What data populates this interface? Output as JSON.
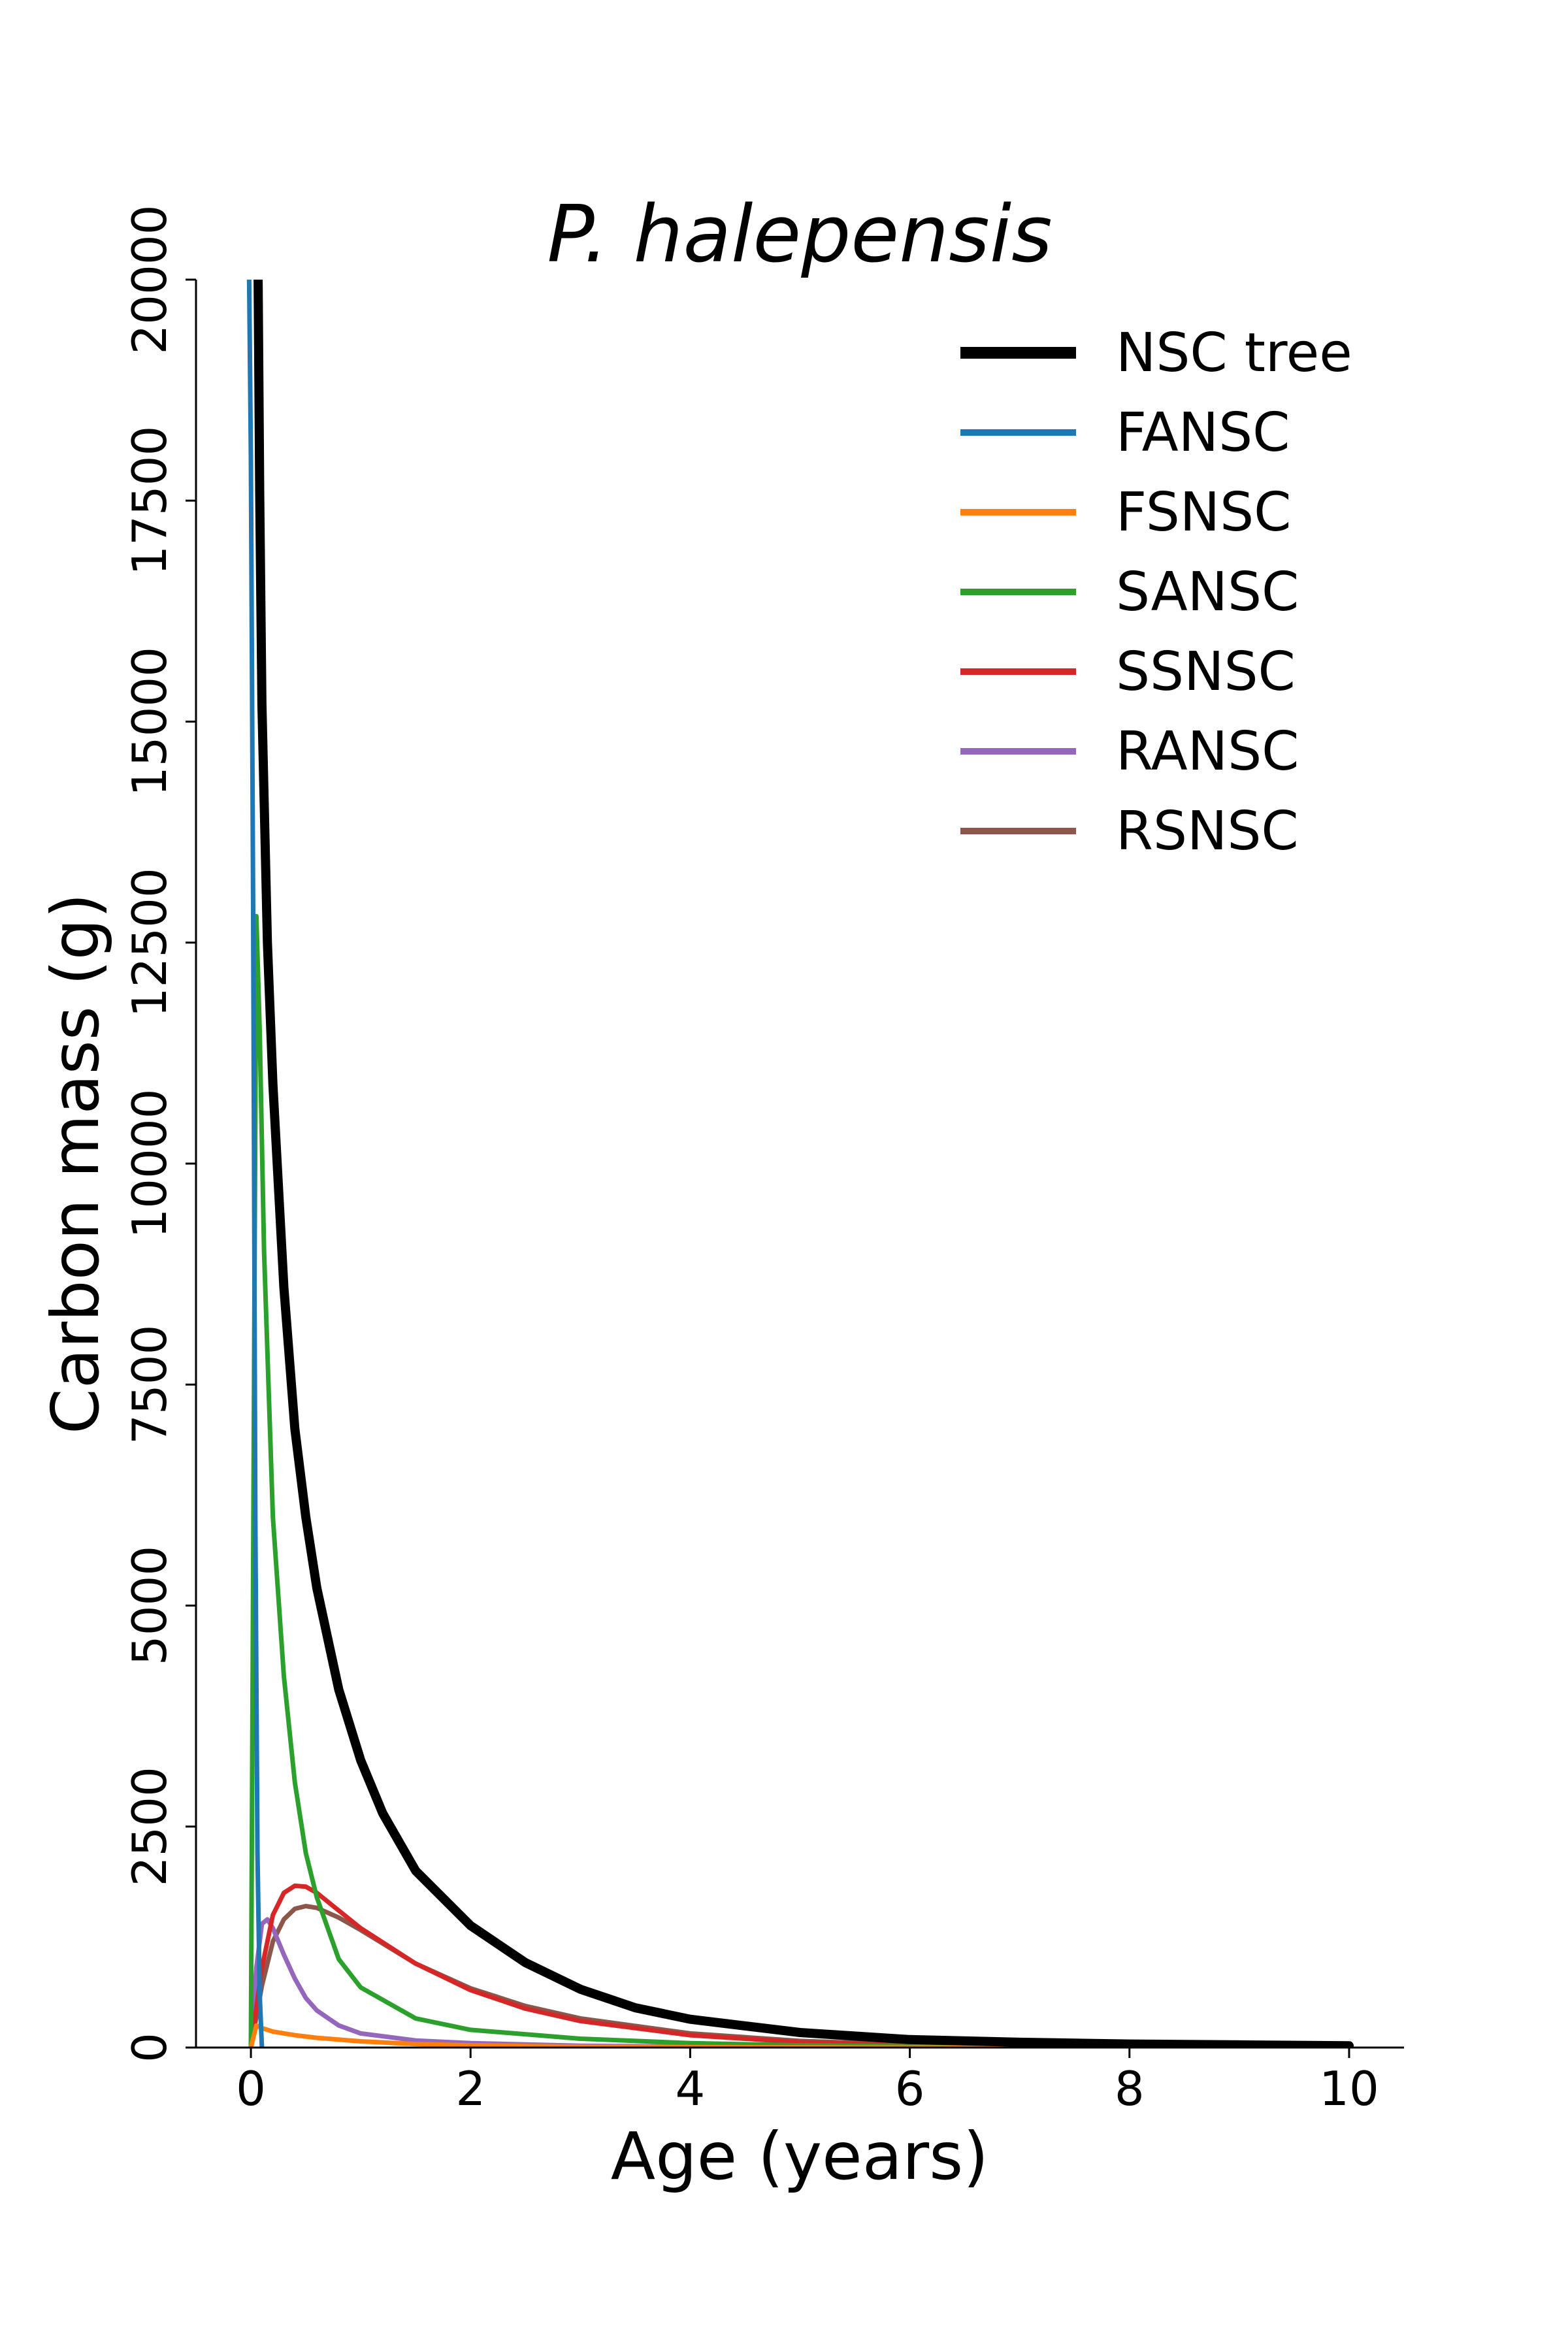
{
  "chart_data": {
    "type": "line",
    "title": "P. halepensis",
    "xlabel": "Age (years)",
    "ylabel": "Carbon mass (g)",
    "xlim": [
      -0.5,
      10.5
    ],
    "ylim": [
      0,
      20000
    ],
    "xticks": [
      0,
      2,
      4,
      6,
      8,
      10
    ],
    "yticks": [
      0,
      2500,
      5000,
      7500,
      10000,
      12500,
      15000,
      17500,
      20000
    ],
    "grid": false,
    "legend_position": "top-right",
    "series": [
      {
        "name": "NSC tree",
        "color": "#000000",
        "x": [
          0.06,
          0.08,
          0.1,
          0.15,
          0.2,
          0.3,
          0.4,
          0.5,
          0.6,
          0.8,
          1.0,
          1.2,
          1.5,
          2.0,
          2.5,
          3.0,
          3.5,
          4.0,
          5.0,
          6.0,
          7.0,
          8.0,
          9.0,
          10.0
        ],
        "y": [
          21000,
          17600,
          15200,
          12500,
          10900,
          8600,
          7000,
          6000,
          5200,
          4050,
          3250,
          2650,
          2000,
          1380,
          960,
          660,
          450,
          320,
          170,
          90,
          60,
          40,
          30,
          20
        ]
      },
      {
        "name": "FANSC",
        "color": "#1f77b4",
        "x": [
          -0.02,
          0.0,
          0.02,
          0.04,
          0.06,
          0.08,
          0.1
        ],
        "y": [
          20500,
          18000,
          13000,
          6000,
          2200,
          600,
          0
        ]
      },
      {
        "name": "FSNSC",
        "color": "#ff7f0e",
        "x": [
          0.0,
          0.05,
          0.1,
          0.2,
          0.4,
          0.6,
          1.0,
          1.5,
          2.0,
          3.0,
          4.0,
          6.0,
          10.0
        ],
        "y": [
          0,
          250,
          220,
          180,
          140,
          110,
          70,
          40,
          25,
          10,
          5,
          0,
          0
        ]
      },
      {
        "name": "SANSC",
        "color": "#2ca02c",
        "x": [
          0.0,
          0.03,
          0.05,
          0.08,
          0.12,
          0.2,
          0.3,
          0.4,
          0.5,
          0.6,
          0.8,
          1.0,
          1.5,
          2.0,
          3.0,
          4.0,
          5.0,
          6.0,
          8.0,
          10.0
        ],
        "y": [
          0,
          8000,
          12800,
          11500,
          9000,
          6000,
          4200,
          3000,
          2200,
          1700,
          1000,
          680,
          330,
          200,
          100,
          50,
          25,
          15,
          5,
          0
        ]
      },
      {
        "name": "SSNSC",
        "color": "#d62728",
        "x": [
          0.0,
          0.1,
          0.2,
          0.3,
          0.4,
          0.5,
          0.6,
          0.8,
          1.0,
          1.5,
          2.0,
          2.5,
          3.0,
          4.0,
          5.0,
          6.0,
          8.0,
          10.0
        ],
        "y": [
          0,
          900,
          1500,
          1750,
          1830,
          1820,
          1750,
          1550,
          1350,
          950,
          650,
          440,
          300,
          140,
          60,
          30,
          10,
          0
        ]
      },
      {
        "name": "RANSC",
        "color": "#9467bd",
        "x": [
          0.0,
          0.05,
          0.1,
          0.15,
          0.2,
          0.3,
          0.4,
          0.5,
          0.6,
          0.8,
          1.0,
          1.5,
          2.0,
          3.0,
          4.0,
          6.0,
          10.0
        ],
        "y": [
          0,
          900,
          1400,
          1450,
          1350,
          1050,
          780,
          560,
          420,
          250,
          160,
          80,
          50,
          20,
          10,
          0,
          0
        ]
      },
      {
        "name": "RSNSC",
        "color": "#8c564b",
        "x": [
          0.0,
          0.1,
          0.2,
          0.3,
          0.4,
          0.5,
          0.6,
          0.8,
          1.0,
          1.5,
          2.0,
          2.5,
          3.0,
          4.0,
          5.0,
          6.0,
          8.0,
          10.0
        ],
        "y": [
          0,
          700,
          1200,
          1450,
          1570,
          1600,
          1580,
          1470,
          1330,
          950,
          670,
          470,
          330,
          160,
          75,
          35,
          10,
          0
        ]
      }
    ]
  }
}
